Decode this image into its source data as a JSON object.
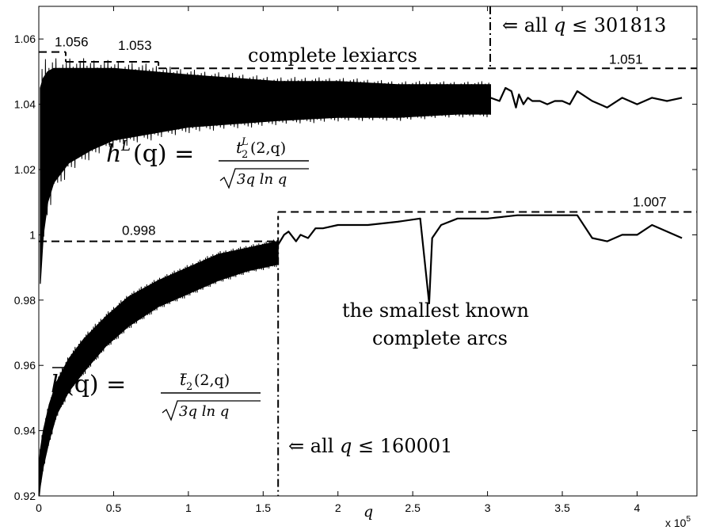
{
  "chart_data": {
    "type": "line",
    "title": "",
    "xlabel": "q",
    "ylabel": "",
    "x_multiplier_label": "x 10",
    "x_multiplier_exp": "5",
    "xlim": [
      0,
      4.4
    ],
    "ylim": [
      0.92,
      1.07
    ],
    "grid": false,
    "x_ticks": [
      {
        "value": 0,
        "label": "0"
      },
      {
        "value": 0.5,
        "label": "0.5"
      },
      {
        "value": 1,
        "label": "1"
      },
      {
        "value": 1.5,
        "label": "1.5"
      },
      {
        "value": 2,
        "label": "2"
      },
      {
        "value": 2.5,
        "label": "2.5"
      },
      {
        "value": 3,
        "label": "3"
      },
      {
        "value": 3.5,
        "label": "3.5"
      },
      {
        "value": 4,
        "label": "4"
      }
    ],
    "y_ticks": [
      {
        "value": 0.92,
        "label": "0.92"
      },
      {
        "value": 0.94,
        "label": "0.94"
      },
      {
        "value": 0.96,
        "label": "0.96"
      },
      {
        "value": 0.98,
        "label": "0.98"
      },
      {
        "value": 1.0,
        "label": "1"
      },
      {
        "value": 1.02,
        "label": "1.02"
      },
      {
        "value": 1.04,
        "label": "1.04"
      },
      {
        "value": 1.06,
        "label": "1.06"
      }
    ],
    "series": [
      {
        "label_text": "complete lexiarcs",
        "dense_until": 3.02,
        "dense_band": [
          [
            0.01,
            0.985,
            1.045
          ],
          [
            0.03,
            1.0,
            1.048
          ],
          [
            0.06,
            1.01,
            1.05
          ],
          [
            0.1,
            1.016,
            1.051
          ],
          [
            0.2,
            1.022,
            1.051
          ],
          [
            0.35,
            1.026,
            1.051
          ],
          [
            0.5,
            1.029,
            1.051
          ],
          [
            0.75,
            1.031,
            1.05
          ],
          [
            1.0,
            1.033,
            1.049
          ],
          [
            1.3,
            1.034,
            1.048
          ],
          [
            1.6,
            1.035,
            1.047
          ],
          [
            2.0,
            1.036,
            1.047
          ],
          [
            2.4,
            1.036,
            1.046
          ],
          [
            2.8,
            1.037,
            1.046
          ],
          [
            3.02,
            1.037,
            1.046
          ]
        ],
        "x": [
          3.02,
          3.08,
          3.12,
          3.16,
          3.19,
          3.21,
          3.24,
          3.27,
          3.3,
          3.35,
          3.4,
          3.45,
          3.5,
          3.55,
          3.6,
          3.7,
          3.8,
          3.9,
          4.0,
          4.1,
          4.2,
          4.3
        ],
        "y": [
          1.042,
          1.041,
          1.045,
          1.044,
          1.039,
          1.043,
          1.04,
          1.042,
          1.041,
          1.041,
          1.04,
          1.041,
          1.041,
          1.04,
          1.044,
          1.041,
          1.039,
          1.042,
          1.04,
          1.042,
          1.041,
          1.042
        ]
      },
      {
        "label_text": "the smallest known complete arcs",
        "dense_until": 1.6,
        "dense_band": [
          [
            0.003,
            0.92,
            0.93
          ],
          [
            0.01,
            0.923,
            0.934
          ],
          [
            0.03,
            0.929,
            0.94
          ],
          [
            0.07,
            0.937,
            0.948
          ],
          [
            0.12,
            0.945,
            0.955
          ],
          [
            0.2,
            0.952,
            0.962
          ],
          [
            0.3,
            0.958,
            0.968
          ],
          [
            0.45,
            0.966,
            0.975
          ],
          [
            0.6,
            0.972,
            0.981
          ],
          [
            0.8,
            0.978,
            0.986
          ],
          [
            1.0,
            0.982,
            0.99
          ],
          [
            1.2,
            0.986,
            0.994
          ],
          [
            1.4,
            0.989,
            0.996
          ],
          [
            1.6,
            0.991,
            0.998
          ]
        ],
        "x": [
          1.6,
          1.64,
          1.67,
          1.72,
          1.75,
          1.8,
          1.85,
          1.9,
          2.0,
          2.2,
          2.4,
          2.55,
          2.61,
          2.63,
          2.69,
          2.8,
          3.0,
          3.2,
          3.4,
          3.6,
          3.7,
          3.8,
          3.9,
          4.0,
          4.1,
          4.2,
          4.3
        ],
        "y": [
          0.997,
          1.0,
          1.001,
          0.998,
          1.0,
          0.999,
          1.002,
          1.002,
          1.003,
          1.003,
          1.004,
          1.005,
          0.979,
          0.999,
          1.003,
          1.005,
          1.005,
          1.006,
          1.006,
          1.006,
          0.999,
          0.998,
          1.0,
          1.0,
          1.003,
          1.001,
          0.999
        ]
      }
    ],
    "reference_lines": [
      {
        "label": "1.056",
        "y": 1.056,
        "x_start": 0,
        "x_end": 0.18
      },
      {
        "label": "1.053",
        "y": 1.053,
        "x_start": 0.18,
        "x_end": 0.8
      },
      {
        "label": "1.051",
        "y": 1.051,
        "x_start": 0.8,
        "x_end": 4.4
      },
      {
        "label": "0.998",
        "y": 0.998,
        "x_start": 0,
        "x_end": 1.6
      },
      {
        "label": "1.007",
        "y": 1.007,
        "x_start": 1.6,
        "x_end": 4.4
      }
    ],
    "vertical_lines": [
      {
        "x": 3.01813,
        "label_prefix": "⇐ all ",
        "label_var": "q",
        "label_rel": " ≤ 301813"
      },
      {
        "x": 1.60001,
        "label_prefix": "⇐ all ",
        "label_var": "q",
        "label_rel": " ≤ 160001"
      }
    ],
    "formulas": {
      "upper": {
        "lhs_main": "h",
        "lhs_sup": "L",
        "lhs_arg": "(q) =",
        "num_main": "t",
        "num_sub": "2",
        "num_sup": "L",
        "num_arg": "(2,q)",
        "den": "3q ln q"
      },
      "lower": {
        "lhs_main": "h",
        "lhs_arg": "(q) =",
        "num_main": "t",
        "num_sub": "2",
        "num_arg": "(2,q)",
        "den": "3q ln q"
      }
    },
    "colors": {
      "line": "#000000",
      "background": "#ffffff"
    }
  }
}
